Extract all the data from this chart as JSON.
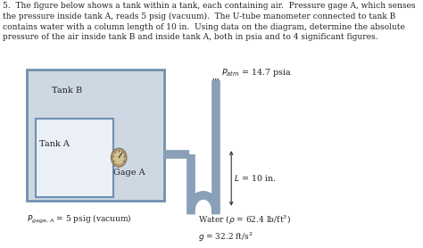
{
  "title_text": "5.  The figure below shows a tank within a tank, each containing air.  Pressure gage A, which senses\nthe pressure inside tank A, reads 5 psig (vacuum).  The U-tube manometer connected to tank B\ncontains water with a column length of 10 in.  Using data on the diagram, determine the absolute\npressure of the air inside tank B and inside tank A, both in psia and to 4 significant figures.",
  "tank_b_label": "Tank B",
  "tank_a_label": "Tank A",
  "gage_label": "Gage A",
  "p_atm_label": "$P_{atm}$ = 14.7 psia",
  "L_label": "$L$ = 10 in.",
  "p_gage_label": "$P_{gage,\\, A}$ = 5 psig (vacuum)",
  "water_label": "Water ($\\rho$ = 62.4 lb/ft$^3$)\n$g$ = 32.2 ft/s$^2$",
  "bg_color": "#ffffff",
  "tank_b_fill": "#cdd8e3",
  "tank_b_edge": "#7090b0",
  "tank_a_fill": "#eaf0f5",
  "tank_a_edge": "#7090b0",
  "pipe_color": "#8aa0b8",
  "pipe_fill": "#c8d8e8",
  "water_color": "#8aa8c0",
  "gage_outer": "#b8a878",
  "gage_inner": "#d4c090",
  "text_color": "#222222"
}
